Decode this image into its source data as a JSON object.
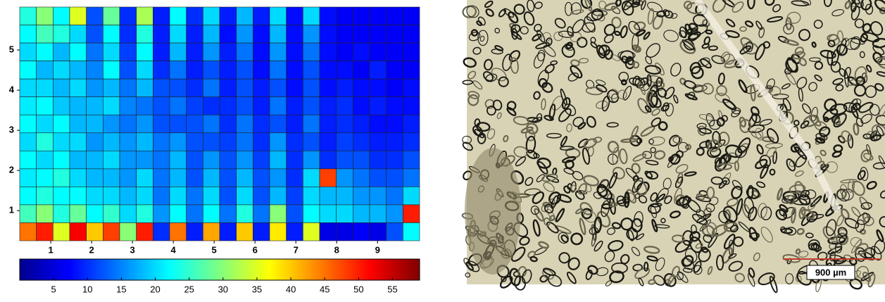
{
  "chart_data": {
    "type": "heatmap",
    "colormap": "jet",
    "xlim": [
      0.24,
      10.03
    ],
    "ylim": [
      0.25,
      6.07
    ],
    "xticks": [
      1,
      2,
      3,
      4,
      5,
      6,
      7,
      8,
      9
    ],
    "yticks": [
      1,
      2,
      3,
      4,
      5
    ],
    "clim": [
      0,
      59
    ],
    "cbar_ticks": [
      5,
      10,
      15,
      20,
      25,
      30,
      35,
      40,
      45,
      50,
      55
    ],
    "z": [
      [
        24,
        30,
        22,
        35,
        12,
        28,
        10,
        32,
        9,
        22,
        10,
        20,
        9,
        18,
        9,
        20,
        8,
        20,
        8,
        7,
        7,
        7,
        7,
        7
      ],
      [
        22,
        26,
        24,
        20,
        12,
        22,
        10,
        24,
        9,
        20,
        9,
        18,
        8,
        16,
        8,
        18,
        8,
        16,
        8,
        7,
        7,
        7,
        7,
        7
      ],
      [
        20,
        22,
        18,
        22,
        14,
        20,
        11,
        22,
        9,
        18,
        9,
        16,
        9,
        14,
        8,
        16,
        8,
        14,
        8,
        7,
        8,
        7,
        7,
        7
      ],
      [
        22,
        18,
        20,
        18,
        15,
        22,
        12,
        20,
        10,
        14,
        9,
        12,
        9,
        12,
        8,
        14,
        8,
        12,
        8,
        8,
        7,
        9,
        7,
        7
      ],
      [
        20,
        20,
        18,
        20,
        16,
        18,
        14,
        18,
        12,
        12,
        10,
        14,
        9,
        12,
        9,
        12,
        8,
        12,
        8,
        9,
        8,
        8,
        7,
        8
      ],
      [
        21,
        22,
        19,
        18,
        18,
        20,
        15,
        14,
        12,
        14,
        11,
        10,
        10,
        12,
        9,
        14,
        9,
        12,
        9,
        10,
        8,
        9,
        8,
        8
      ],
      [
        22,
        20,
        22,
        18,
        18,
        16,
        14,
        16,
        12,
        12,
        12,
        14,
        10,
        14,
        10,
        12,
        9,
        14,
        9,
        10,
        9,
        8,
        8,
        9
      ],
      [
        20,
        24,
        20,
        20,
        16,
        18,
        16,
        18,
        14,
        16,
        12,
        12,
        11,
        14,
        10,
        16,
        10,
        12,
        9,
        11,
        10,
        9,
        9,
        10
      ],
      [
        22,
        20,
        22,
        18,
        18,
        20,
        16,
        16,
        14,
        18,
        12,
        16,
        12,
        16,
        11,
        18,
        10,
        16,
        10,
        12,
        12,
        10,
        10,
        12
      ],
      [
        21,
        22,
        24,
        20,
        18,
        18,
        16,
        20,
        14,
        18,
        12,
        18,
        12,
        18,
        12,
        16,
        10,
        20,
        48,
        16,
        14,
        12,
        12,
        14
      ],
      [
        22,
        24,
        22,
        22,
        20,
        20,
        18,
        20,
        14,
        20,
        14,
        20,
        12,
        20,
        12,
        18,
        11,
        20,
        18,
        18,
        16,
        16,
        14,
        20
      ],
      [
        26,
        30,
        24,
        28,
        22,
        25,
        20,
        24,
        16,
        22,
        14,
        22,
        14,
        24,
        14,
        30,
        12,
        22,
        20,
        20,
        18,
        18,
        16,
        50
      ],
      [
        45,
        50,
        35,
        52,
        40,
        48,
        30,
        50,
        10,
        45,
        9,
        42,
        9,
        40,
        9,
        38,
        9,
        35,
        6,
        6,
        7,
        6,
        12,
        22
      ]
    ]
  },
  "micrograph": {
    "scale_bar": "900 µm"
  }
}
